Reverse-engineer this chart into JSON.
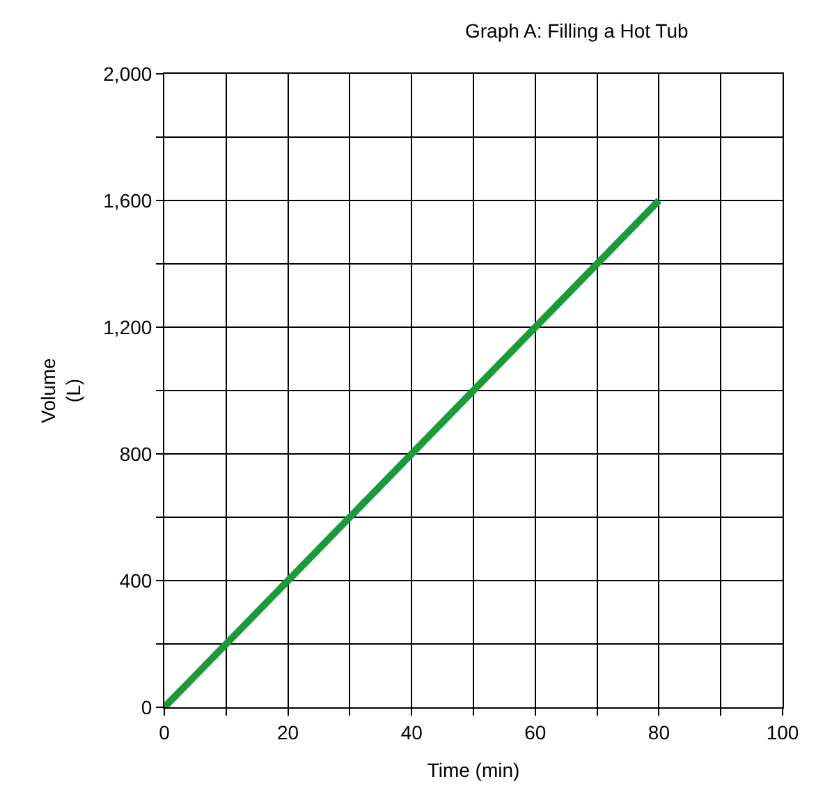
{
  "chart_data": {
    "type": "line",
    "title": "Graph A: Filling a Hot Tub",
    "xlabel": "Time (min)",
    "ylabel": "Volume\n(L)",
    "x": [
      0,
      80
    ],
    "series": [
      {
        "color": "#1b9a3c",
        "values": [
          0,
          1600
        ]
      }
    ],
    "xlim": [
      0,
      100
    ],
    "ylim": [
      0,
      2000
    ],
    "xticks": [
      0,
      {
        "value": 10,
        "label": null
      },
      20,
      {
        "value": 30,
        "label": null
      },
      40,
      {
        "value": 50,
        "label": null
      },
      60,
      {
        "value": 70,
        "label": null
      },
      80,
      {
        "value": 90,
        "label": null
      },
      100
    ],
    "yticks": [
      "0",
      {
        "value": 200,
        "label": null
      },
      {
        "value": 400,
        "label": "400"
      },
      {
        "value": 600,
        "label": null
      },
      {
        "value": 800,
        "label": "800"
      },
      {
        "value": 1000,
        "label": null
      },
      {
        "value": 1200,
        "label": "1,200"
      },
      {
        "value": 1400,
        "label": null
      },
      {
        "value": 1600,
        "label": "1,600"
      },
      {
        "value": 1800,
        "label": null
      },
      {
        "value": 2000,
        "label": "2,000"
      }
    ],
    "grid": true,
    "marker": "none",
    "line_style": "solid"
  }
}
